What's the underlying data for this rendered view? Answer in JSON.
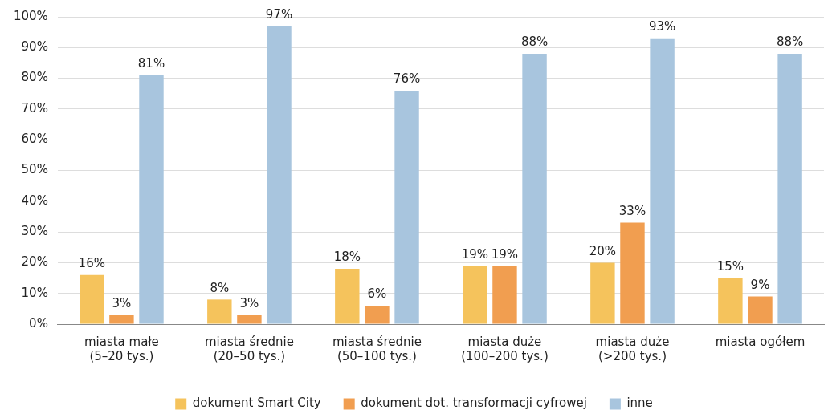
{
  "chart_data": {
    "type": "bar",
    "categories": [
      "miasta małe\n(5–20 tys.)",
      "miasta średnie\n(20–50 tys.)",
      "miasta średnie\n(50–100 tys.)",
      "miasta duże\n(100–200 tys.)",
      "miasta duże\n(>200 tys.)",
      "miasta ogółem"
    ],
    "series": [
      {
        "name": "dokument Smart City",
        "color": "#f5c35c",
        "values": [
          16,
          8,
          18,
          19,
          20,
          15
        ],
        "value_labels": [
          "16%",
          "8%",
          "18%",
          "19%",
          "20%",
          "15%"
        ]
      },
      {
        "name": "dokument dot. transformacji cyfrowej",
        "color": "#f19e50",
        "values": [
          3,
          3,
          6,
          19,
          33,
          9
        ],
        "value_labels": [
          "3%",
          "3%",
          "6%",
          "19%",
          "33%",
          "9%"
        ]
      },
      {
        "name": "inne",
        "color": "#a8c5de",
        "values": [
          81,
          97,
          76,
          88,
          93,
          88
        ],
        "value_labels": [
          "81%",
          "97%",
          "76%",
          "88%",
          "93%",
          "88%"
        ]
      }
    ],
    "ylim": [
      0,
      100
    ],
    "yticks": [
      {
        "value": 0,
        "label": "0%"
      },
      {
        "value": 10,
        "label": "10%"
      },
      {
        "value": 20,
        "label": "20%"
      },
      {
        "value": 30,
        "label": "30%"
      },
      {
        "value": 40,
        "label": "40%"
      },
      {
        "value": 50,
        "label": "50%"
      },
      {
        "value": 60,
        "label": "60%"
      },
      {
        "value": 70,
        "label": "70%"
      },
      {
        "value": 80,
        "label": "80%"
      },
      {
        "value": 90,
        "label": "90%"
      },
      {
        "value": 100,
        "label": "100%"
      }
    ],
    "grid": "y",
    "legend": "bottom"
  }
}
